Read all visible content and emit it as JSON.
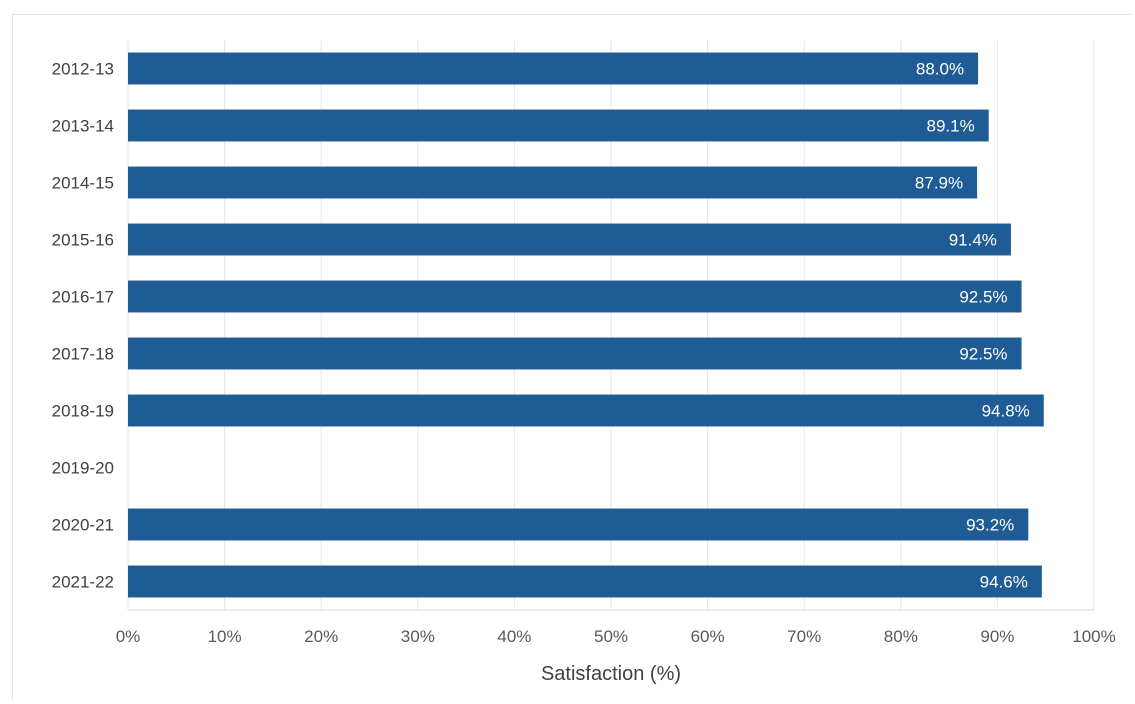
{
  "chart_data": {
    "type": "bar",
    "orientation": "horizontal",
    "categories": [
      "2012-13",
      "2013-14",
      "2014-15",
      "2015-16",
      "2016-17",
      "2017-18",
      "2018-19",
      "2019-20",
      "2020-21",
      "2021-22"
    ],
    "values": [
      88.0,
      89.1,
      87.9,
      91.4,
      92.5,
      92.5,
      94.8,
      null,
      93.2,
      94.6
    ],
    "data_labels": [
      "88.0%",
      "89.1%",
      "87.9%",
      "91.4%",
      "92.5%",
      "92.5%",
      "94.8%",
      "",
      "93.2%",
      "94.6%"
    ],
    "xlabel": "Satisfaction (%)",
    "ylabel": "",
    "xlim": [
      0,
      100
    ],
    "xticks": [
      "0%",
      "10%",
      "20%",
      "30%",
      "40%",
      "50%",
      "60%",
      "70%",
      "80%",
      "90%",
      "100%"
    ],
    "grid": "vertical",
    "bar_color": "#1f5b94",
    "grid_color": "#e6e6e6",
    "label_color": "#ffffff"
  }
}
